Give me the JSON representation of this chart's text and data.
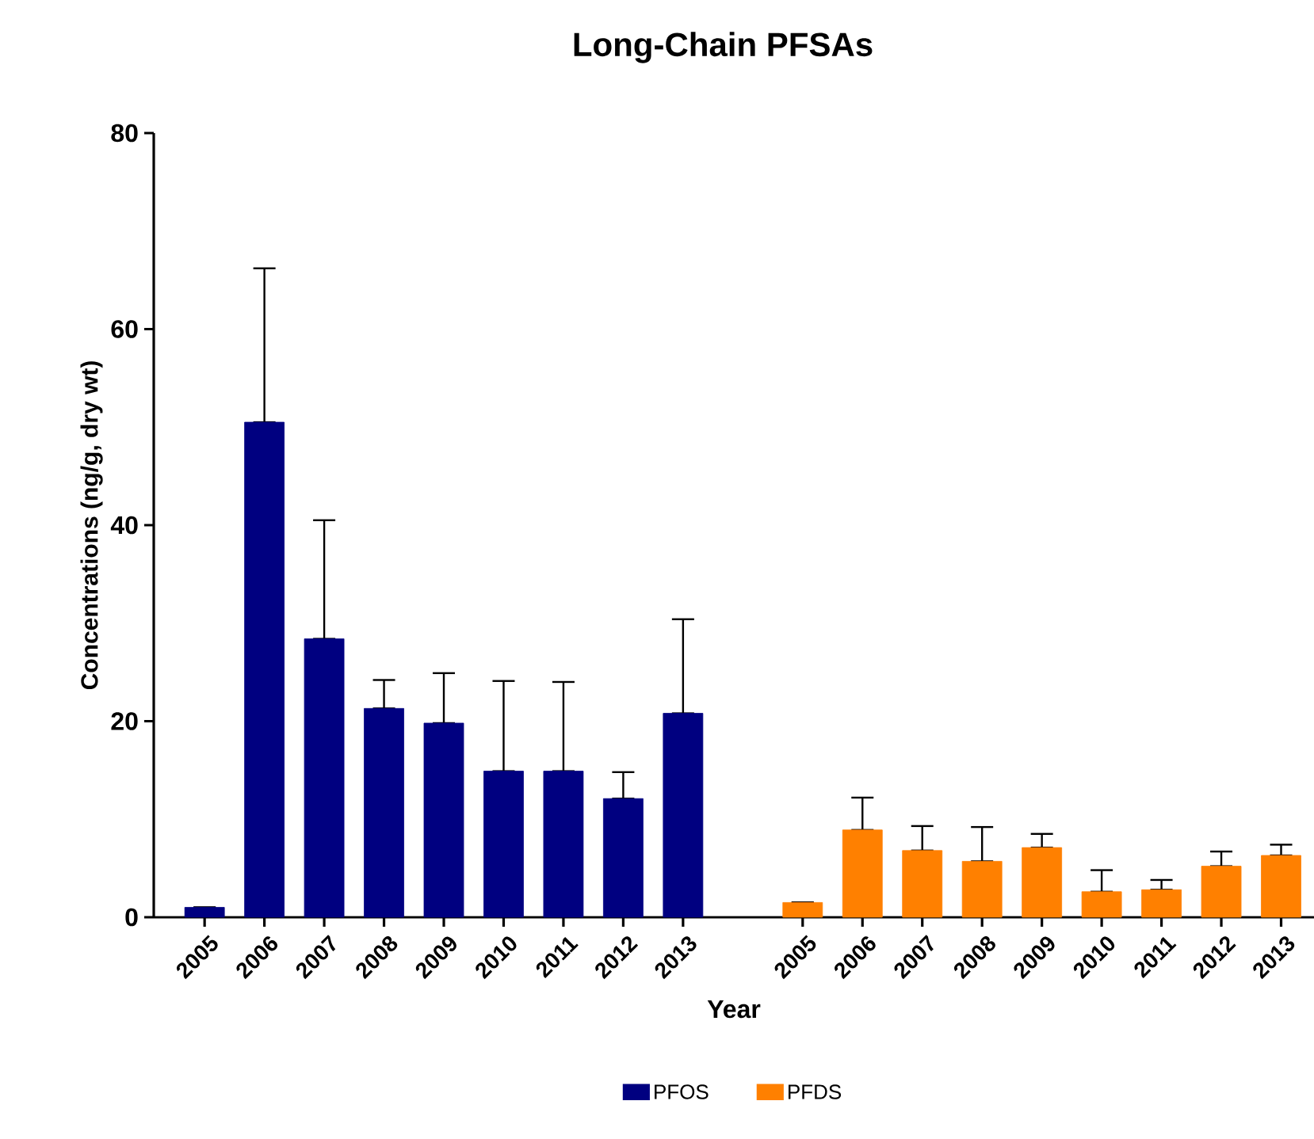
{
  "chart_data": {
    "type": "bar",
    "title": "Long-Chain PFSAs",
    "xlabel": "Year",
    "ylabel": "Concentrations (ng/g, dry wt)",
    "categories": [
      "2005",
      "2006",
      "2007",
      "2008",
      "2009",
      "2010",
      "2011",
      "2012",
      "2013",
      null,
      "2005",
      "2006",
      "2007",
      "2008",
      "2009",
      "2010",
      "2011",
      "2012",
      "2013"
    ],
    "series": [
      {
        "name": "PFOS",
        "color": "#000080",
        "values": [
          1.0,
          50.5,
          28.4,
          21.3,
          19.8,
          14.9,
          14.9,
          12.1,
          20.8,
          null,
          null,
          null,
          null,
          null,
          null,
          null,
          null,
          null,
          null
        ],
        "errors": [
          null,
          [
            50.5,
            66.2
          ],
          [
            28.4,
            40.5
          ],
          [
            21.3,
            24.2
          ],
          [
            19.8,
            24.9
          ],
          [
            14.9,
            24.1
          ],
          [
            14.9,
            24.0
          ],
          [
            12.1,
            14.8
          ],
          [
            20.8,
            30.4
          ],
          null,
          null,
          null,
          null,
          null,
          null,
          null,
          null,
          null,
          null
        ]
      },
      {
        "name": "PFDS",
        "color": "#ff8000",
        "values": [
          null,
          null,
          null,
          null,
          null,
          null,
          null,
          null,
          null,
          null,
          1.5,
          8.9,
          6.8,
          5.7,
          7.1,
          2.6,
          2.8,
          5.2,
          6.3
        ],
        "errors": [
          null,
          null,
          null,
          null,
          null,
          null,
          null,
          null,
          null,
          null,
          null,
          [
            8.9,
            12.2
          ],
          [
            6.8,
            9.3
          ],
          [
            5.7,
            9.2
          ],
          [
            7.1,
            8.5
          ],
          [
            2.6,
            4.8
          ],
          [
            2.8,
            3.8
          ],
          [
            5.2,
            6.7
          ],
          [
            6.3,
            7.4
          ]
        ]
      }
    ],
    "ylim": [
      0,
      80
    ],
    "yticks": [
      0,
      20,
      40,
      60,
      80
    ],
    "grid": false,
    "legend": "bottom"
  }
}
